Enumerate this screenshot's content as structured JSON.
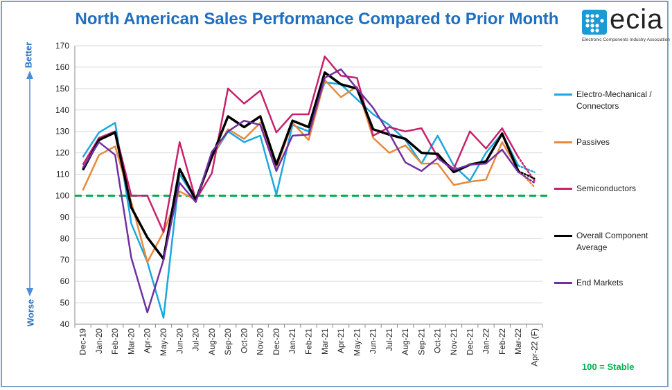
{
  "chart_data": {
    "type": "line",
    "title": "North American Sales Performance Compared to Prior Month",
    "ylim": [
      40,
      170
    ],
    "yticks": [
      40,
      50,
      60,
      70,
      80,
      90,
      100,
      110,
      120,
      130,
      140,
      150,
      160,
      170
    ],
    "categories": [
      "Dec-19",
      "Jan-20",
      "Feb-20",
      "Mar-20",
      "Apr-20",
      "May-20",
      "Jun-20",
      "Jul-20",
      "Aug-20",
      "Sep-20",
      "Oct-20",
      "Nov-20",
      "Dec-20",
      "Jan-21",
      "Feb-21",
      "Mar-21",
      "Apr-21",
      "May-21",
      "Jun-21",
      "Jul-21",
      "Aug-21",
      "Sep-21",
      "Oct-21",
      "Nov-21",
      "Dec-21",
      "Jan-22",
      "Feb-22",
      "Mar-22",
      "Apr-22 (F)"
    ],
    "series": [
      {
        "name": "Electro-Mechanical / Connectors",
        "color": "#1aa7e0",
        "values": [
          118,
          129.5,
          134,
          87,
          69,
          43,
          110,
          98,
          118,
          130,
          125,
          128,
          100.5,
          133,
          130,
          153,
          152,
          145,
          138,
          133,
          126,
          115,
          128,
          114,
          107,
          120,
          129,
          114,
          111
        ]
      },
      {
        "name": "Passives",
        "color": "#e8893a",
        "values": [
          102.5,
          119,
          123,
          97,
          69,
          83,
          102,
          98,
          118,
          131,
          126.5,
          134,
          113,
          134,
          126,
          154,
          146,
          151,
          127,
          120,
          123.5,
          115,
          115,
          105,
          106.5,
          107.5,
          125,
          112,
          104
        ]
      },
      {
        "name": "Semiconductors",
        "color": "#c8206a",
        "values": [
          114.5,
          127,
          130,
          100,
          100,
          83,
          125,
          98,
          110.5,
          150,
          143,
          149,
          129.5,
          138,
          138,
          165,
          156,
          155,
          128,
          132,
          130,
          131.5,
          118,
          112.5,
          130,
          122,
          131.5,
          118,
          107
        ]
      },
      {
        "name": "Overall Component Average",
        "color": "#000000",
        "values": [
          112,
          126,
          129.5,
          94.5,
          80.5,
          70.5,
          112.5,
          98,
          118,
          137,
          132,
          137,
          114.5,
          135,
          132,
          157.5,
          152,
          150,
          131,
          128.5,
          126.5,
          120,
          119.5,
          111,
          114.5,
          116,
          129,
          111.5,
          108
        ]
      },
      {
        "name": "End Markets",
        "color": "#7030a0",
        "values": [
          113,
          125,
          119,
          71,
          45.5,
          70,
          106,
          97,
          120.5,
          130,
          135,
          133,
          111.5,
          128,
          128.5,
          155,
          159,
          150,
          141,
          129,
          115.5,
          111.5,
          117.5,
          112,
          114.5,
          115,
          121.5,
          111,
          106
        ]
      }
    ],
    "forecast_index": 28,
    "reference_line": {
      "value": 100,
      "color": "#00b050",
      "label": "100 = Stable"
    },
    "legend_position": "right"
  },
  "side_labels": {
    "better": "Better",
    "worse": "Worse"
  },
  "logo": {
    "text": "ecia",
    "subtitle": "Electronic Components Industry Association"
  }
}
